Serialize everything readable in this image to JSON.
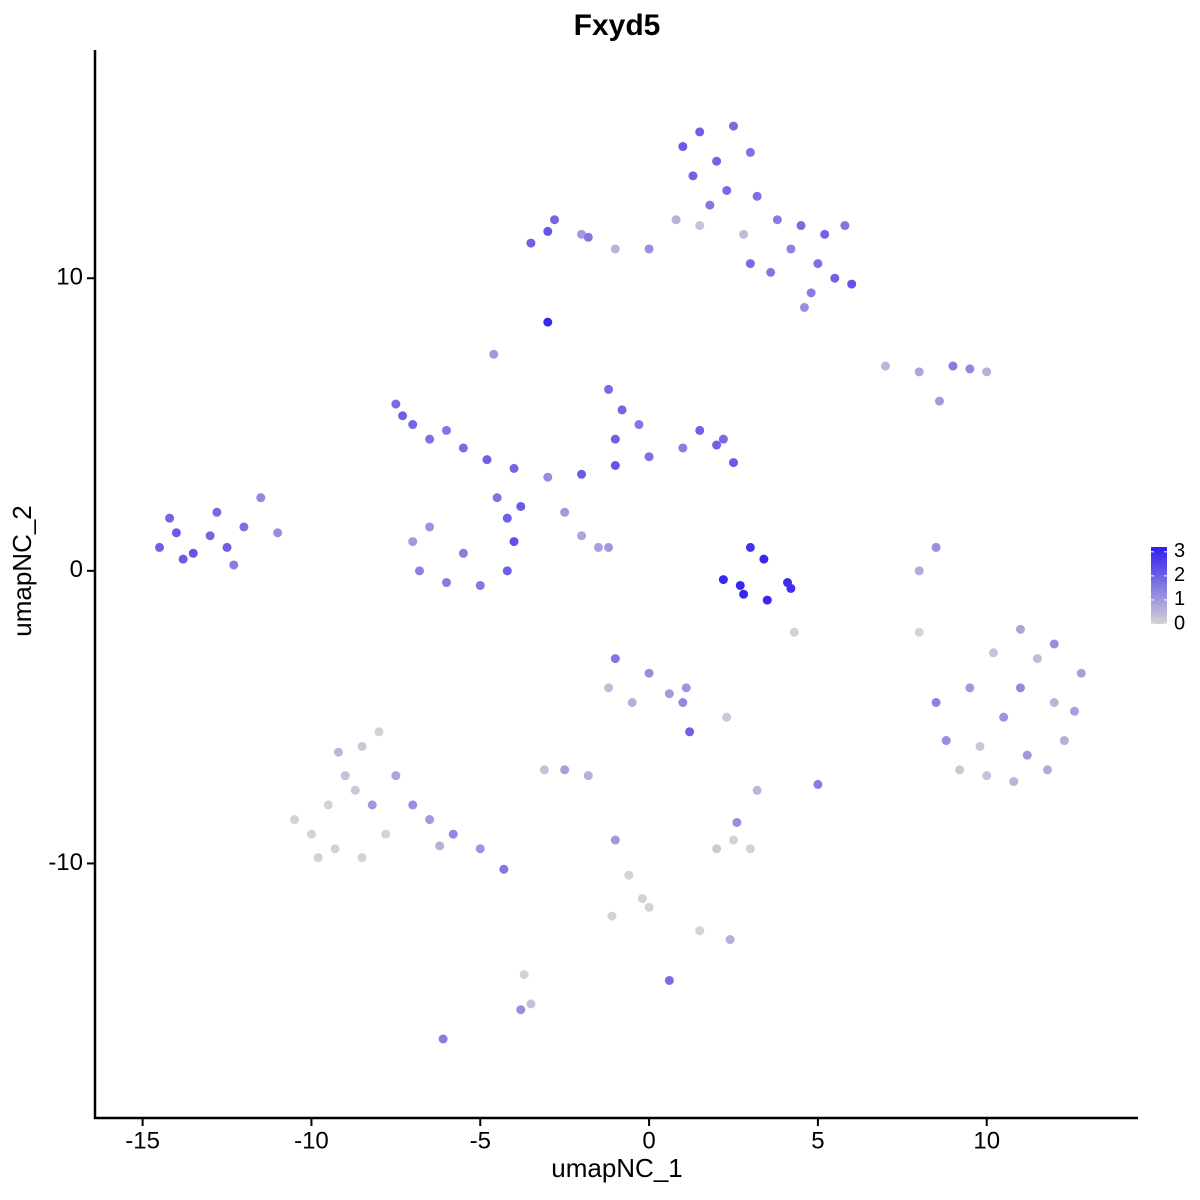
{
  "chart_data": {
    "type": "scatter",
    "title": "Fxyd5",
    "x_label": "umapNC_1",
    "y_label": "umapNC_2",
    "xlim": [
      -16.41,
      14.48
    ],
    "ylim": [
      -18.7,
      17.8
    ],
    "xticks": [
      -15,
      -10,
      -5,
      0,
      5,
      10
    ],
    "yticks": [
      -10,
      0,
      10
    ],
    "low_color": "#d3d3d3",
    "high_color": "#2f1cf2",
    "colorbar": {
      "lim": [
        0,
        3.2
      ],
      "ticks": [
        0,
        1,
        2,
        3
      ]
    },
    "x": [
      1.5,
      2.5,
      1,
      2,
      3,
      1.3,
      2.3,
      1.8,
      3.2,
      3.8,
      4.5,
      5.2,
      5.8,
      4.2,
      5,
      5.5,
      6,
      4.8,
      4.6,
      3.6,
      2.8,
      0.8,
      0,
      -1,
      -2,
      -3,
      -3.5,
      -2.8,
      -1.8,
      1.5,
      3,
      -3,
      -4.6,
      -7.5,
      -7,
      -6.5,
      -7.3,
      -6,
      -5.5,
      -4.8,
      -4,
      -3,
      -2,
      -1,
      0,
      1,
      2,
      2.5,
      2.2,
      1.5,
      -1.2,
      -0.8,
      -0.3,
      -1,
      -6.5,
      -7,
      -6.8,
      -6,
      -5,
      -4.2,
      -4,
      -4.2,
      -4.5,
      -3.8,
      -2.5,
      -2,
      -1.5,
      -1.2,
      -5.5,
      -14.5,
      -14,
      -13.5,
      -13,
      -12.5,
      -12,
      -11.5,
      -12.8,
      -13.8,
      -11,
      -12.3,
      -14.2,
      2.2,
      2.8,
      3.5,
      4.2,
      3,
      3.4,
      4.1,
      2.7,
      8.5,
      8,
      7,
      8,
      9,
      9.5,
      10,
      8.6,
      11,
      12,
      12.8,
      10.2,
      9.5,
      11,
      12,
      10.5,
      9.8,
      11.2,
      12.3,
      10,
      8.5,
      8.8,
      11.5,
      12.6,
      9.2,
      10.8,
      11.8,
      -1,
      0,
      -1.2,
      0.6,
      1,
      1.2,
      -0.5,
      1.1,
      -10,
      -10.5,
      -9.5,
      -9,
      -8.5,
      -8,
      -9.2,
      -8.2,
      -9.3,
      -8.7,
      -7.5,
      -7,
      -6.5,
      -5.8,
      -5,
      -4.3,
      -7.8,
      -8.5,
      -9.8,
      -6.2,
      -2.5,
      -3.1,
      -1.8,
      2,
      2.5,
      3,
      2.6,
      3.2,
      5,
      -1,
      -0.6,
      0,
      -0.2,
      1.5,
      2.4,
      0.6,
      -3.7,
      -3.5,
      -3.8,
      -6.1,
      -1.1,
      2.3,
      4.3,
      8
    ],
    "y": [
      15,
      15.2,
      14.5,
      14,
      14.3,
      13.5,
      13,
      12.5,
      12.8,
      12,
      11.8,
      11.5,
      11.8,
      11,
      10.5,
      10,
      9.8,
      9.5,
      9,
      10.2,
      11.5,
      12,
      11,
      11,
      11.5,
      11.6,
      11.2,
      12,
      11.4,
      11.8,
      10.5,
      8.5,
      7.4,
      5.7,
      5,
      4.5,
      5.3,
      4.8,
      4.2,
      3.8,
      3.5,
      3.2,
      3.3,
      3.6,
      3.9,
      4.2,
      4.3,
      3.7,
      4.5,
      4.8,
      6.2,
      5.5,
      5,
      4.5,
      1.5,
      1,
      0,
      -0.4,
      -0.5,
      0,
      1,
      1.8,
      2.5,
      2.2,
      2,
      1.2,
      0.8,
      0.8,
      0.6,
      0.8,
      1.3,
      0.6,
      1.2,
      0.8,
      1.5,
      2.5,
      2,
      0.4,
      1.3,
      0.2,
      1.8,
      -0.3,
      -0.8,
      -1,
      -0.6,
      0.8,
      0.4,
      -0.4,
      -0.5,
      0.8,
      0,
      7,
      6.8,
      7,
      6.9,
      6.8,
      5.8,
      -2,
      -2.5,
      -3.5,
      -2.8,
      -4,
      -4,
      -4.5,
      -5,
      -6,
      -6.3,
      -5.8,
      -7,
      -4.5,
      -5.8,
      -3,
      -4.8,
      -6.8,
      -7.2,
      -6.8,
      -3,
      -3.5,
      -4,
      -4.2,
      -4.5,
      -5.5,
      -4.5,
      -4,
      -9,
      -8.5,
      -8,
      -7,
      -6,
      -5.5,
      -6.2,
      -8,
      -9.5,
      -7.5,
      -7,
      -8,
      -8.5,
      -9,
      -9.5,
      -10.2,
      -9,
      -9.8,
      -9.8,
      -9.4,
      -6.8,
      -6.8,
      -7,
      -9.5,
      -9.2,
      -9.5,
      -8.6,
      -7.5,
      -7.3,
      -9.2,
      -10.4,
      -11.5,
      -11.2,
      -12.3,
      -12.6,
      -14,
      -13.8,
      -14.8,
      -15,
      -16,
      -11.8,
      -5,
      -2.1,
      -2.1
    ],
    "values": [
      2.0,
      1.8,
      2.1,
      1.9,
      1.7,
      2.0,
      1.8,
      1.6,
      1.7,
      1.5,
      1.8,
      1.9,
      1.6,
      1.4,
      1.7,
      2.0,
      2.2,
      1.5,
      1.2,
      1.6,
      0.4,
      0.6,
      1.2,
      0.5,
      1.0,
      2.2,
      2.0,
      1.9,
      1.6,
      0.3,
      1.8,
      3.0,
      1.0,
      1.8,
      1.9,
      1.7,
      2.0,
      1.6,
      1.8,
      2.0,
      1.9,
      1.2,
      2.1,
      2.2,
      1.7,
      1.5,
      2.0,
      2.1,
      1.8,
      2.0,
      1.8,
      1.9,
      1.6,
      2.0,
      1.1,
      1.0,
      1.4,
      1.5,
      1.6,
      2.0,
      2.3,
      2.0,
      1.7,
      2.1,
      1.0,
      0.8,
      0.9,
      1.0,
      1.5,
      2.0,
      2.1,
      2.2,
      1.9,
      2.0,
      1.7,
      1.3,
      1.8,
      2.1,
      1.2,
      1.5,
      1.9,
      3.0,
      3.0,
      3.0,
      2.9,
      2.8,
      3.0,
      2.9,
      3.0,
      1.2,
      0.7,
      0.5,
      0.8,
      1.5,
      1.3,
      0.6,
      1.0,
      0.8,
      1.2,
      0.9,
      0.3,
      1.0,
      1.3,
      0.5,
      1.1,
      0.2,
      1.0,
      0.6,
      0.3,
      1.4,
      1.2,
      0.4,
      0.9,
      0.2,
      0.5,
      0.7,
      1.6,
      1.2,
      0.4,
      1.0,
      1.3,
      2.0,
      0.6,
      1.1,
      0,
      0,
      0,
      0.3,
      0.2,
      0,
      0.5,
      1.0,
      0,
      0.2,
      0.8,
      1.2,
      1.0,
      1.3,
      1.1,
      1.6,
      0,
      0,
      0,
      0.6,
      0.9,
      0.3,
      0.6,
      0.2,
      0,
      0,
      1.2,
      0.5,
      1.5,
      1.0,
      0,
      0,
      0,
      0,
      0.6,
      1.8,
      0,
      0.3,
      1.2,
      1.5,
      0,
      0.2,
      0,
      0
    ]
  }
}
